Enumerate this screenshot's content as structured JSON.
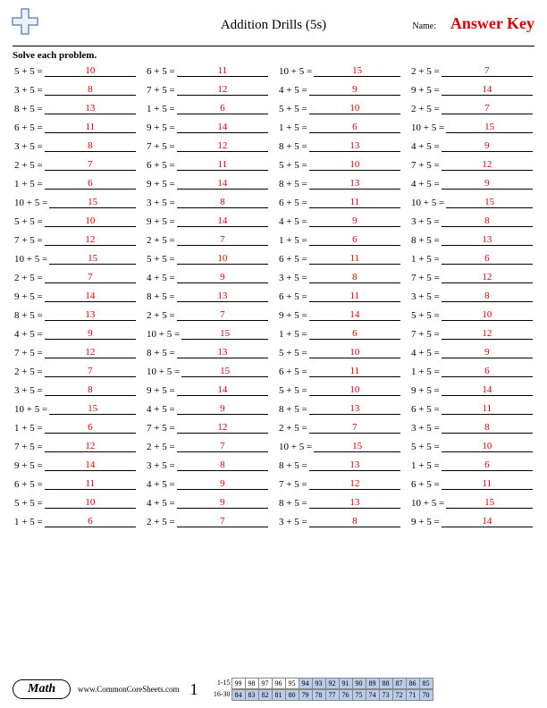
{
  "header": {
    "title": "Addition Drills (5s)",
    "name_label": "Name:",
    "answer_key": "Answer Key"
  },
  "instruction": "Solve each problem.",
  "problems": [
    [
      [
        "5 + 5 =",
        "10"
      ],
      [
        "6 + 5 =",
        "11"
      ],
      [
        "10 + 5 =",
        "15"
      ],
      [
        "2 + 5 =",
        "7"
      ]
    ],
    [
      [
        "3 + 5 =",
        "8"
      ],
      [
        "7 + 5 =",
        "12"
      ],
      [
        "4 + 5 =",
        "9"
      ],
      [
        "9 + 5 =",
        "14"
      ]
    ],
    [
      [
        "8 + 5 =",
        "13"
      ],
      [
        "1 + 5 =",
        "6"
      ],
      [
        "5 + 5 =",
        "10"
      ],
      [
        "2 + 5 =",
        "7"
      ]
    ],
    [
      [
        "6 + 5 =",
        "11"
      ],
      [
        "9 + 5 =",
        "14"
      ],
      [
        "1 + 5 =",
        "6"
      ],
      [
        "10 + 5 =",
        "15"
      ]
    ],
    [
      [
        "3 + 5 =",
        "8"
      ],
      [
        "7 + 5 =",
        "12"
      ],
      [
        "8 + 5 =",
        "13"
      ],
      [
        "4 + 5 =",
        "9"
      ]
    ],
    [
      [
        "2 + 5 =",
        "7"
      ],
      [
        "6 + 5 =",
        "11"
      ],
      [
        "5 + 5 =",
        "10"
      ],
      [
        "7 + 5 =",
        "12"
      ]
    ],
    [
      [
        "1 + 5 =",
        "6"
      ],
      [
        "9 + 5 =",
        "14"
      ],
      [
        "8 + 5 =",
        "13"
      ],
      [
        "4 + 5 =",
        "9"
      ]
    ],
    [
      [
        "10 + 5 =",
        "15"
      ],
      [
        "3 + 5 =",
        "8"
      ],
      [
        "6 + 5 =",
        "11"
      ],
      [
        "10 + 5 =",
        "15"
      ]
    ],
    [
      [
        "5 + 5 =",
        "10"
      ],
      [
        "9 + 5 =",
        "14"
      ],
      [
        "4 + 5 =",
        "9"
      ],
      [
        "3 + 5 =",
        "8"
      ]
    ],
    [
      [
        "7 + 5 =",
        "12"
      ],
      [
        "2 + 5 =",
        "7"
      ],
      [
        "1 + 5 =",
        "6"
      ],
      [
        "8 + 5 =",
        "13"
      ]
    ],
    [
      [
        "10 + 5 =",
        "15"
      ],
      [
        "5 + 5 =",
        "10"
      ],
      [
        "6 + 5 =",
        "11"
      ],
      [
        "1 + 5 =",
        "6"
      ]
    ],
    [
      [
        "2 + 5 =",
        "7"
      ],
      [
        "4 + 5 =",
        "9"
      ],
      [
        "3 + 5 =",
        "8"
      ],
      [
        "7 + 5 =",
        "12"
      ]
    ],
    [
      [
        "9 + 5 =",
        "14"
      ],
      [
        "8 + 5 =",
        "13"
      ],
      [
        "6 + 5 =",
        "11"
      ],
      [
        "3 + 5 =",
        "8"
      ]
    ],
    [
      [
        "8 + 5 =",
        "13"
      ],
      [
        "2 + 5 =",
        "7"
      ],
      [
        "9 + 5 =",
        "14"
      ],
      [
        "5 + 5 =",
        "10"
      ]
    ],
    [
      [
        "4 + 5 =",
        "9"
      ],
      [
        "10 + 5 =",
        "15"
      ],
      [
        "1 + 5 =",
        "6"
      ],
      [
        "7 + 5 =",
        "12"
      ]
    ],
    [
      [
        "7 + 5 =",
        "12"
      ],
      [
        "8 + 5 =",
        "13"
      ],
      [
        "5 + 5 =",
        "10"
      ],
      [
        "4 + 5 =",
        "9"
      ]
    ],
    [
      [
        "2 + 5 =",
        "7"
      ],
      [
        "10 + 5 =",
        "15"
      ],
      [
        "6 + 5 =",
        "11"
      ],
      [
        "1 + 5 =",
        "6"
      ]
    ],
    [
      [
        "3 + 5 =",
        "8"
      ],
      [
        "9 + 5 =",
        "14"
      ],
      [
        "5 + 5 =",
        "10"
      ],
      [
        "9 + 5 =",
        "14"
      ]
    ],
    [
      [
        "10 + 5 =",
        "15"
      ],
      [
        "4 + 5 =",
        "9"
      ],
      [
        "8 + 5 =",
        "13"
      ],
      [
        "6 + 5 =",
        "11"
      ]
    ],
    [
      [
        "1 + 5 =",
        "6"
      ],
      [
        "7 + 5 =",
        "12"
      ],
      [
        "2 + 5 =",
        "7"
      ],
      [
        "3 + 5 =",
        "8"
      ]
    ],
    [
      [
        "7 + 5 =",
        "12"
      ],
      [
        "2 + 5 =",
        "7"
      ],
      [
        "10 + 5 =",
        "15"
      ],
      [
        "5 + 5 =",
        "10"
      ]
    ],
    [
      [
        "9 + 5 =",
        "14"
      ],
      [
        "3 + 5 =",
        "8"
      ],
      [
        "8 + 5 =",
        "13"
      ],
      [
        "1 + 5 =",
        "6"
      ]
    ],
    [
      [
        "6 + 5 =",
        "11"
      ],
      [
        "4 + 5 =",
        "9"
      ],
      [
        "7 + 5 =",
        "12"
      ],
      [
        "6 + 5 =",
        "11"
      ]
    ],
    [
      [
        "5 + 5 =",
        "10"
      ],
      [
        "4 + 5 =",
        "9"
      ],
      [
        "8 + 5 =",
        "13"
      ],
      [
        "10 + 5 =",
        "15"
      ]
    ],
    [
      [
        "1 + 5 =",
        "6"
      ],
      [
        "2 + 5 =",
        "7"
      ],
      [
        "3 + 5 =",
        "8"
      ],
      [
        "9 + 5 =",
        "14"
      ]
    ]
  ],
  "footer": {
    "subject": "Math",
    "site": "www.CommonCoreSheets.com",
    "page_number": "1",
    "score": {
      "row1_label": "1-15",
      "row2_label": "16-30",
      "row1": [
        "99",
        "98",
        "97",
        "96",
        "95",
        "94",
        "93",
        "92",
        "91",
        "90",
        "89",
        "88",
        "87",
        "86",
        "85"
      ],
      "row2": [
        "84",
        "83",
        "82",
        "81",
        "80",
        "79",
        "78",
        "77",
        "76",
        "75",
        "74",
        "73",
        "72",
        "71",
        "70"
      ],
      "row1_shaded_from": 5,
      "row2_shaded_from": 0
    }
  },
  "colors": {
    "answer": "#d40000",
    "shade": "#b9cdea",
    "border": "#888888",
    "text": "#000000",
    "bg": "#ffffff"
  }
}
